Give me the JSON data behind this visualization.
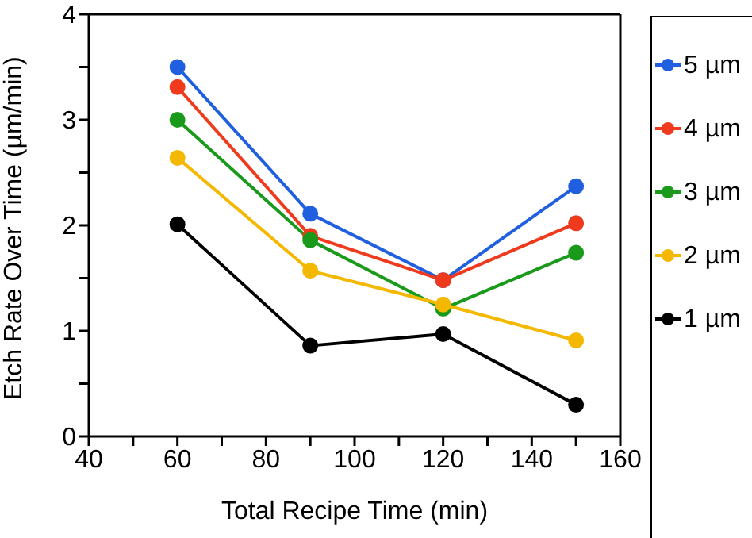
{
  "chart_data": {
    "type": "line",
    "xlabel": "Total Recipe Time (min)",
    "ylabel": "Etch Rate Over Time (µm/min)",
    "x": [
      60,
      90,
      120,
      150
    ],
    "series": [
      {
        "name": "5 µm",
        "color": "#1f5fe0",
        "values": [
          3.5,
          2.11,
          1.48,
          2.37
        ]
      },
      {
        "name": "4 µm",
        "color": "#f03a1e",
        "values": [
          3.31,
          1.9,
          1.48,
          2.02
        ]
      },
      {
        "name": "3 µm",
        "color": "#1a9a1a",
        "values": [
          3.0,
          1.86,
          1.21,
          1.74
        ]
      },
      {
        "name": "2 µm",
        "color": "#f5b800",
        "values": [
          2.64,
          1.57,
          1.25,
          0.91
        ]
      },
      {
        "name": "1 µm",
        "color": "#000000",
        "values": [
          2.01,
          0.86,
          0.97,
          0.3
        ]
      }
    ],
    "xlim": [
      40,
      160
    ],
    "xticks": [
      40,
      {
        "value": 50,
        "label": null
      },
      60,
      {
        "value": 70,
        "label": null
      },
      80,
      {
        "value": 90,
        "label": null
      },
      100,
      {
        "value": 110,
        "label": null
      },
      120,
      {
        "value": 130,
        "label": null
      },
      140,
      {
        "value": 150,
        "label": null
      },
      160
    ],
    "ylim": [
      0,
      4
    ],
    "yticks": [
      0,
      {
        "value": 0.5,
        "label": null
      },
      1,
      {
        "value": 1.5,
        "label": null
      },
      2,
      {
        "value": 2.5,
        "label": null
      },
      3,
      {
        "value": 3.5,
        "label": null
      },
      4
    ],
    "grid": false,
    "legend": "right",
    "marker": "circle",
    "line_style": "solid"
  }
}
